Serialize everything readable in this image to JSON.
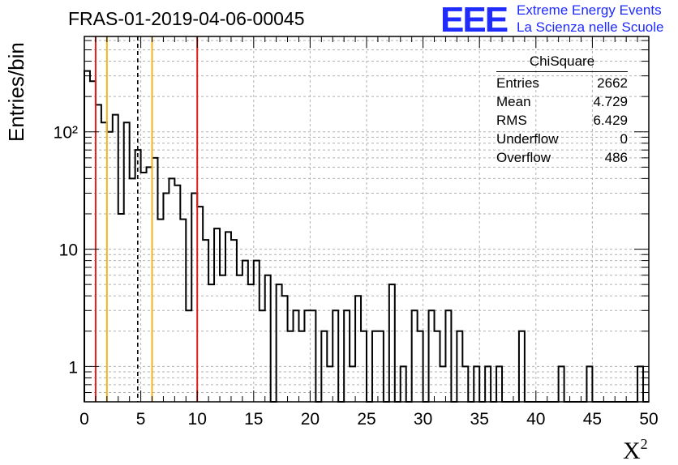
{
  "title": "FRAS-01-2019-04-06-00045",
  "logo": {
    "mark": "EEE",
    "line1": "Extreme Energy Events",
    "line2": "La Scienza nelle Scuole",
    "color": "#1f2bff"
  },
  "stats": {
    "name": "ChiSquare",
    "rows": [
      {
        "label": "Entries",
        "value": "2662"
      },
      {
        "label": "Mean",
        "value": "4.729"
      },
      {
        "label": "RMS",
        "value": "6.429"
      },
      {
        "label": "Underflow",
        "value": "0"
      },
      {
        "label": "Overflow",
        "value": "486"
      }
    ]
  },
  "chart_data": {
    "type": "bar",
    "histogram": true,
    "xlabel": "X²",
    "ylabel": "Entries/bin",
    "xlim": [
      0,
      50
    ],
    "ylim": [
      0.5,
      650
    ],
    "yscale": "log",
    "grid": true,
    "bin_width": 0.5,
    "x_ticks": [
      "0",
      "5",
      "10",
      "15",
      "20",
      "25",
      "30",
      "35",
      "40",
      "45",
      "50"
    ],
    "y_ticks": [
      "1",
      "10",
      "10²"
    ],
    "y_tick_values": [
      1,
      10,
      100
    ],
    "values": [
      330,
      270,
      170,
      120,
      100,
      140,
      20,
      120,
      40,
      70,
      45,
      50,
      60,
      18,
      30,
      40,
      35,
      18,
      3,
      30,
      23,
      12,
      5,
      15,
      6,
      14,
      12,
      6,
      8,
      5,
      8,
      3,
      6,
      0,
      5,
      4,
      2,
      3,
      2,
      3,
      3,
      0.5,
      2,
      1,
      3,
      0.5,
      3,
      1,
      4,
      2,
      0.5,
      2,
      2,
      0.5,
      5,
      0.5,
      1,
      0.5,
      3,
      2,
      0.5,
      3,
      2,
      1,
      3,
      0.5,
      2,
      1,
      0,
      1,
      0.5,
      1,
      0,
      1,
      0.5,
      0,
      0.5,
      2,
      0,
      0.5,
      0.5,
      0,
      0.5,
      0,
      1,
      0,
      0,
      0,
      0.5,
      1,
      0,
      0,
      0.5,
      0,
      0,
      0,
      0,
      0.5,
      1,
      0
    ],
    "vertical_lines": [
      {
        "x": 1,
        "color": "#e0201a",
        "style": "solid"
      },
      {
        "x": 2,
        "color": "#f2b418",
        "style": "solid"
      },
      {
        "x": 4.729,
        "color": "#000000",
        "style": "dashed"
      },
      {
        "x": 6,
        "color": "#f2b418",
        "style": "solid"
      },
      {
        "x": 10,
        "color": "#e0201a",
        "style": "solid"
      }
    ]
  }
}
